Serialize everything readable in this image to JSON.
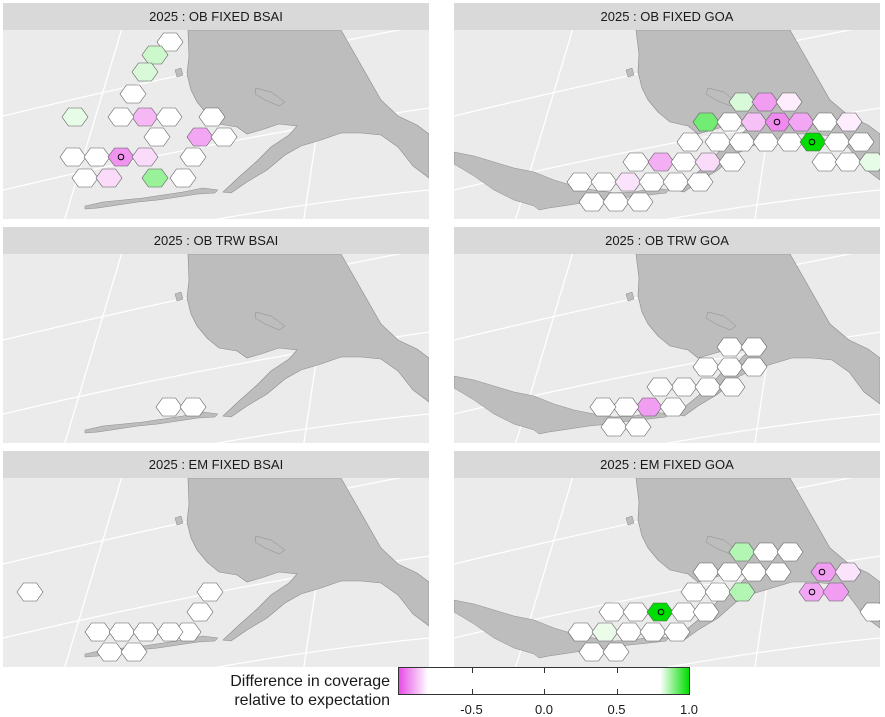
{
  "panels": [
    {
      "title": "2025 : OB FIXED BSAI",
      "region": "bsai",
      "cells": [
        [
          202,
          16,
          0
        ],
        [
          170,
          42,
          0
        ],
        [
          155,
          55,
          0.2
        ],
        [
          145,
          72,
          0.15
        ],
        [
          133,
          94,
          0
        ],
        [
          145,
          117,
          -0.4
        ],
        [
          121,
          117,
          0
        ],
        [
          157,
          137,
          0
        ],
        [
          169,
          117,
          0
        ],
        [
          212,
          117,
          0
        ],
        [
          200,
          137,
          -0.5
        ],
        [
          224,
          137,
          0
        ],
        [
          75,
          117,
          0.1
        ],
        [
          73,
          157,
          0
        ],
        [
          97,
          157,
          0
        ],
        [
          121,
          157,
          -0.6
        ],
        [
          145,
          157,
          -0.2
        ],
        [
          193,
          157,
          0
        ],
        [
          85,
          178,
          0
        ],
        [
          109,
          178,
          -0.2
        ],
        [
          155,
          178,
          0.4
        ],
        [
          183,
          178,
          0
        ]
      ],
      "markers": [
        [
          121,
          157
        ]
      ]
    },
    {
      "title": "2025 : OB FIXED GOA",
      "region": "goa",
      "cells": [
        [
          742,
          102,
          0.15
        ],
        [
          765,
          102,
          -0.55
        ],
        [
          789,
          102,
          -0.1
        ],
        [
          706,
          122,
          0.55
        ],
        [
          730,
          122,
          0
        ],
        [
          754,
          122,
          -0.35
        ],
        [
          778,
          122,
          -0.65
        ],
        [
          801,
          122,
          -0.5
        ],
        [
          825,
          122,
          0
        ],
        [
          849,
          122,
          -0.1
        ],
        [
          690,
          142,
          0
        ],
        [
          718,
          142,
          0
        ],
        [
          742,
          142,
          0
        ],
        [
          766,
          142,
          0
        ],
        [
          790,
          142,
          0
        ],
        [
          813,
          142,
          1
        ],
        [
          837,
          142,
          0
        ],
        [
          861,
          142,
          0
        ],
        [
          636,
          162,
          0
        ],
        [
          661,
          162,
          -0.45
        ],
        [
          684,
          162,
          0
        ],
        [
          708,
          162,
          -0.2
        ],
        [
          732,
          162,
          0
        ],
        [
          825,
          162,
          0
        ],
        [
          848,
          162,
          0
        ],
        [
          872,
          162,
          0.1
        ],
        [
          580,
          182,
          0
        ],
        [
          604,
          182,
          0
        ],
        [
          628,
          182,
          -0.15
        ],
        [
          652,
          182,
          0
        ],
        [
          676,
          182,
          0
        ],
        [
          700,
          182,
          0
        ],
        [
          592,
          202,
          0
        ],
        [
          616,
          202,
          0
        ],
        [
          640,
          202,
          0
        ]
      ],
      "markers": [
        [
          777,
          122
        ],
        [
          812,
          142
        ]
      ]
    },
    {
      "title": "2025 : OB TRW BSAI",
      "region": "bsai",
      "cells": [
        [
          169,
          407,
          0
        ],
        [
          193,
          407,
          0
        ]
      ],
      "markers": []
    },
    {
      "title": "2025 : OB TRW GOA",
      "region": "goa",
      "cells": [
        [
          730,
          347,
          0
        ],
        [
          754,
          347,
          0
        ],
        [
          706,
          367,
          0
        ],
        [
          730,
          367,
          0
        ],
        [
          754,
          367,
          0
        ],
        [
          684,
          387,
          0
        ],
        [
          708,
          387,
          0
        ],
        [
          732,
          387,
          0
        ],
        [
          660,
          387,
          0
        ],
        [
          649,
          407,
          -0.55
        ],
        [
          673,
          407,
          0
        ],
        [
          626,
          407,
          0
        ],
        [
          603,
          407,
          0
        ],
        [
          614,
          427,
          0
        ],
        [
          638,
          427,
          0
        ]
      ],
      "markers": []
    },
    {
      "title": "2025 : EM FIXED BSAI",
      "region": "bsai",
      "cells": [
        [
          30,
          592,
          0
        ],
        [
          210,
          592,
          0
        ],
        [
          200,
          612,
          0
        ],
        [
          188,
          632,
          0
        ],
        [
          98,
          632,
          0
        ],
        [
          122,
          632,
          0
        ],
        [
          146,
          632,
          0
        ],
        [
          170,
          632,
          0
        ],
        [
          110,
          652,
          0
        ],
        [
          134,
          652,
          0
        ]
      ],
      "markers": []
    },
    {
      "title": "2025 : EM FIXED GOA",
      "region": "goa",
      "cells": [
        [
          742,
          552,
          0.3
        ],
        [
          766,
          552,
          0
        ],
        [
          790,
          552,
          0
        ],
        [
          706,
          572,
          0
        ],
        [
          730,
          572,
          0
        ],
        [
          754,
          572,
          0
        ],
        [
          778,
          572,
          0
        ],
        [
          824,
          572,
          -0.55
        ],
        [
          848,
          572,
          -0.15
        ],
        [
          694,
          592,
          0
        ],
        [
          718,
          592,
          0
        ],
        [
          742,
          592,
          0.3
        ],
        [
          812,
          592,
          -0.5
        ],
        [
          836,
          592,
          -0.55
        ],
        [
          873,
          612,
          0
        ],
        [
          612,
          612,
          0
        ],
        [
          636,
          612,
          0
        ],
        [
          660,
          612,
          1
        ],
        [
          684,
          612,
          0
        ],
        [
          706,
          612,
          0
        ],
        [
          581,
          632,
          0
        ],
        [
          605,
          632,
          0.08
        ],
        [
          629,
          632,
          0
        ],
        [
          653,
          632,
          0
        ],
        [
          677,
          632,
          0
        ],
        [
          592,
          652,
          0
        ],
        [
          616,
          652,
          0
        ]
      ],
      "markers": [
        [
          822,
          572
        ],
        [
          812,
          592
        ],
        [
          661,
          612
        ]
      ]
    }
  ],
  "legend": {
    "title_line1": "Difference in coverage",
    "title_line2": "relative to expectation",
    "range": [
      -1,
      1
    ],
    "ticks": [
      -0.5,
      0.0,
      0.5,
      1.0
    ],
    "tick_labels": [
      "-0.5",
      "0.0",
      "0.5",
      "1.0"
    ],
    "colors": {
      "low": "#e64de6",
      "mid": "#ffffff",
      "high": "#00dd00"
    }
  },
  "colors": {
    "land": "#bdbdbd",
    "land_stroke": "#8c8c8c",
    "sea": "#ebebeb",
    "strip": "#d9d9d9",
    "graticule": "#ffffff",
    "cell_stroke": "#5a5a5a"
  }
}
